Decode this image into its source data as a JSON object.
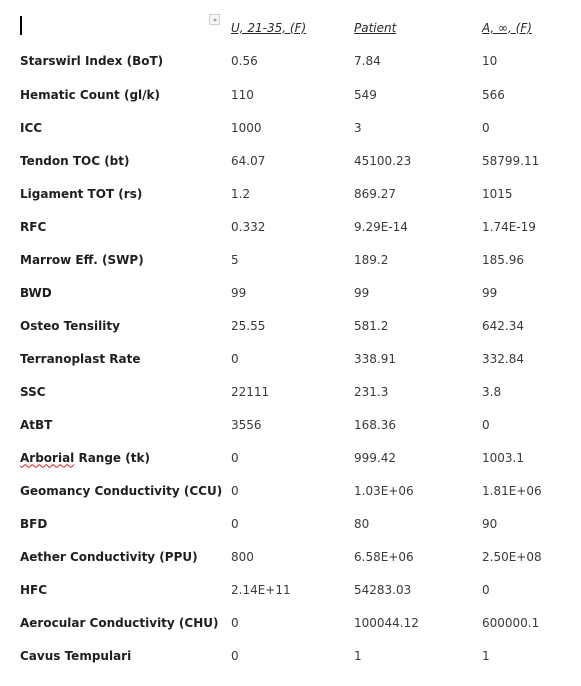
{
  "table": {
    "headers": [
      "",
      "U, 21-35, (F)",
      "Patient",
      "A, ∞, (F)"
    ],
    "rows": [
      {
        "label": "Starswirl Index (BoT)",
        "values": [
          "0.56",
          "7.84",
          "10"
        ]
      },
      {
        "label": "Hematic Count (gl/k)",
        "values": [
          "110",
          "549",
          "566"
        ]
      },
      {
        "label": "ICC",
        "values": [
          "1000",
          "3",
          "0"
        ]
      },
      {
        "label": "Tendon TOC (bt)",
        "values": [
          "64.07",
          "45100.23",
          "58799.11"
        ]
      },
      {
        "label": "Ligament TOT (rs)",
        "values": [
          "1.2",
          "869.27",
          "1015"
        ]
      },
      {
        "label": "RFC",
        "values": [
          "0.332",
          "9.29E-14",
          "1.74E-19"
        ]
      },
      {
        "label": "Marrow Eff. (SWP)",
        "values": [
          "5",
          "189.2",
          "185.96"
        ]
      },
      {
        "label": "BWD",
        "values": [
          "99",
          "99",
          "99"
        ]
      },
      {
        "label": "Osteo Tensility",
        "values": [
          "25.55",
          "581.2",
          "642.34"
        ]
      },
      {
        "label": "Terranoplast Rate",
        "values": [
          "0",
          "338.91",
          "332.84"
        ]
      },
      {
        "label": "SSC",
        "values": [
          "22111",
          "231.3",
          "3.8"
        ]
      },
      {
        "label": "AtBT",
        "values": [
          "3556",
          "168.36",
          "0"
        ]
      },
      {
        "label": "Arborial Range (tk)",
        "spell_word": "Arborial",
        "label_rest": " Range (tk)",
        "values": [
          "0",
          "999.42",
          "1003.1"
        ]
      },
      {
        "label": "Geomancy Conductivity (CCU)",
        "values": [
          "0",
          "1.03E+06",
          "1.81E+06"
        ]
      },
      {
        "label": "BFD",
        "values": [
          "0",
          "80",
          "90"
        ]
      },
      {
        "label": "Aether Conductivity (PPU)",
        "values": [
          "800",
          "6.58E+06",
          "2.50E+08"
        ]
      },
      {
        "label": "HFC",
        "values": [
          "2.14E+11",
          "54283.03",
          "0"
        ]
      },
      {
        "label": "Aerocular Conductivity (CHU)",
        "values": [
          "0",
          "100044.12",
          "600000.1"
        ]
      },
      {
        "label": "Cavus Tempulari",
        "values": [
          "0",
          "1",
          "1"
        ]
      }
    ]
  }
}
